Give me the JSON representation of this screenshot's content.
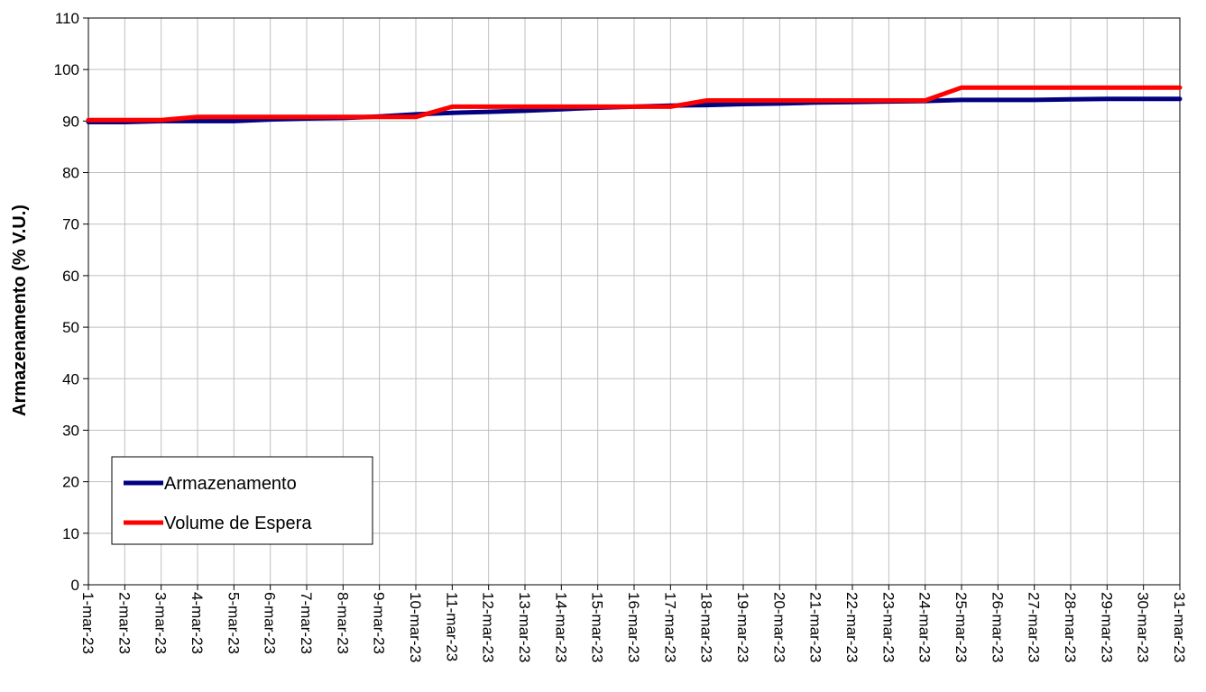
{
  "chart_data": {
    "type": "line",
    "ylabel": "Armazenamento (% V.U.)",
    "xlabel": "",
    "ylim": [
      0,
      110
    ],
    "yticks": [
      0,
      10,
      20,
      30,
      40,
      50,
      60,
      70,
      80,
      90,
      100,
      110
    ],
    "grid": true,
    "legend_position": "bottom-left",
    "categories": [
      "1-mar-23",
      "2-mar-23",
      "3-mar-23",
      "4-mar-23",
      "5-mar-23",
      "6-mar-23",
      "7-mar-23",
      "8-mar-23",
      "9-mar-23",
      "10-mar-23",
      "11-mar-23",
      "12-mar-23",
      "13-mar-23",
      "14-mar-23",
      "15-mar-23",
      "16-mar-23",
      "17-mar-23",
      "18-mar-23",
      "19-mar-23",
      "20-mar-23",
      "21-mar-23",
      "22-mar-23",
      "23-mar-23",
      "24-mar-23",
      "25-mar-23",
      "26-mar-23",
      "27-mar-23",
      "28-mar-23",
      "29-mar-23",
      "30-mar-23",
      "31-mar-23"
    ],
    "series": [
      {
        "name": "Armazenamento",
        "color": "#000080",
        "values": [
          89.8,
          89.8,
          90.0,
          90.0,
          90.0,
          90.3,
          90.5,
          90.6,
          90.9,
          91.3,
          91.6,
          91.8,
          92.0,
          92.3,
          92.6,
          92.8,
          93.0,
          93.1,
          93.3,
          93.4,
          93.6,
          93.7,
          93.8,
          93.9,
          94.1,
          94.1,
          94.1,
          94.2,
          94.3,
          94.3,
          94.3
        ]
      },
      {
        "name": "Volume de Espera",
        "color": "#ff0000",
        "values": [
          90.2,
          90.2,
          90.2,
          90.8,
          90.8,
          90.8,
          90.8,
          90.8,
          90.8,
          90.8,
          92.8,
          92.8,
          92.8,
          92.8,
          92.8,
          92.8,
          92.8,
          94.0,
          94.0,
          94.0,
          94.0,
          94.0,
          94.0,
          94.0,
          96.5,
          96.5,
          96.5,
          96.5,
          96.5,
          96.5,
          96.5
        ]
      }
    ]
  }
}
